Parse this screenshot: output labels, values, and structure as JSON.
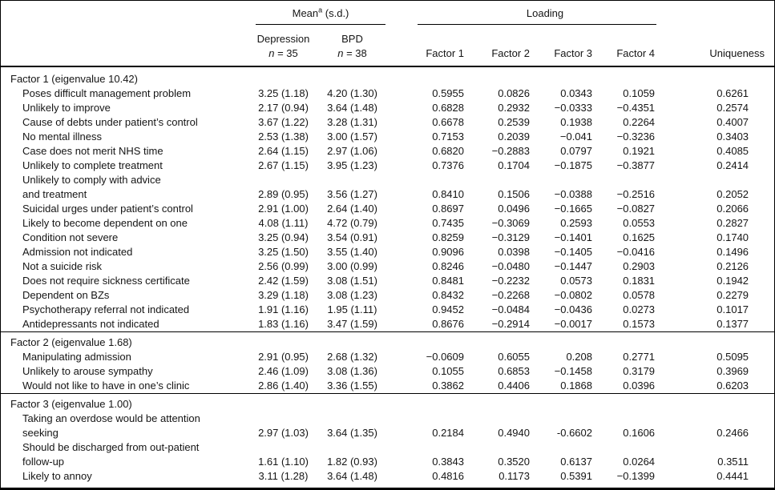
{
  "table": {
    "header": {
      "mean_group": {
        "label": "Mean",
        "superscript": "a",
        "suffix": " (s.d.)"
      },
      "loading_group": "Loading",
      "mean_cols": [
        {
          "name": "Depression",
          "n_italic": "n",
          "n_rest": " = 35"
        },
        {
          "name": "BPD",
          "n_italic": "n",
          "n_rest": " = 38"
        }
      ],
      "factor_cols": [
        "Factor 1",
        "Factor 2",
        "Factor 3",
        "Factor 4"
      ],
      "uniqueness_col": "Uniqueness"
    },
    "sections": [
      {
        "title": "Factor 1 (eigenvalue 10.42)",
        "rows": [
          {
            "label_lines": [
              "Poses difficult management problem"
            ],
            "dep": "3.25 (1.18)",
            "bpd": "4.20 (1.30)",
            "loadings": [
              "0.5955",
              "0.0826",
              "0.0343",
              "0.1059"
            ],
            "uniqueness": "0.6261"
          },
          {
            "label_lines": [
              "Unlikely to improve"
            ],
            "dep": "2.17 (0.94)",
            "bpd": "3.64 (1.48)",
            "loadings": [
              "0.6828",
              "0.2932",
              "−0.0333",
              "−0.4351"
            ],
            "uniqueness": "0.2574"
          },
          {
            "label_lines": [
              "Cause of debts under patient’s control"
            ],
            "dep": "3.67 (1.22)",
            "bpd": "3.28 (1.31)",
            "loadings": [
              "0.6678",
              "0.2539",
              "0.1938",
              "0.2264"
            ],
            "uniqueness": "0.4007"
          },
          {
            "label_lines": [
              "No mental illness"
            ],
            "dep": "2.53 (1.38)",
            "bpd": "3.00 (1.57)",
            "loadings": [
              "0.7153",
              "0.2039",
              "−0.041",
              "−0.3236"
            ],
            "uniqueness": "0.3403"
          },
          {
            "label_lines": [
              "Case does not merit NHS time"
            ],
            "dep": "2.64 (1.15)",
            "bpd": "2.97 (1.06)",
            "loadings": [
              "0.6820",
              "−0.2883",
              "0.0797",
              "0.1921"
            ],
            "uniqueness": "0.4085"
          },
          {
            "label_lines": [
              "Unlikely to complete treatment"
            ],
            "dep": "2.67 (1.15)",
            "bpd": "3.95 (1.23)",
            "loadings": [
              "0.7376",
              "0.1704",
              "−0.1875",
              "−0.3877"
            ],
            "uniqueness": "0.2414"
          },
          {
            "label_lines": [
              "Unlikely to comply with advice",
              "and treatment"
            ],
            "dep": "2.89 (0.95)",
            "bpd": "3.56 (1.27)",
            "loadings": [
              "0.8410",
              "0.1506",
              "−0.0388",
              "−0.2516"
            ],
            "uniqueness": "0.2052"
          },
          {
            "label_lines": [
              "Suicidal urges under patient’s control"
            ],
            "dep": "2.91 (1.00)",
            "bpd": "2.64 (1.40)",
            "loadings": [
              "0.8697",
              "0.0496",
              "−0.1665",
              "−0.0827"
            ],
            "uniqueness": "0.2066"
          },
          {
            "label_lines": [
              "Likely to become dependent on one"
            ],
            "dep": "4.08 (1.11)",
            "bpd": "4.72 (0.79)",
            "loadings": [
              "0.7435",
              "−0.3069",
              "0.2593",
              "0.0553"
            ],
            "uniqueness": "0.2827"
          },
          {
            "label_lines": [
              "Condition not severe"
            ],
            "dep": "3.25 (0.94)",
            "bpd": "3.54 (0.91)",
            "loadings": [
              "0.8259",
              "−0.3129",
              "−0.1401",
              "0.1625"
            ],
            "uniqueness": "0.1740"
          },
          {
            "label_lines": [
              "Admission not indicated"
            ],
            "dep": "3.25 (1.50)",
            "bpd": "3.55 (1.40)",
            "loadings": [
              "0.9096",
              "0.0398",
              "−0.1405",
              "−0.0416"
            ],
            "uniqueness": "0.1496"
          },
          {
            "label_lines": [
              "Not a suicide risk"
            ],
            "dep": "2.56 (0.99)",
            "bpd": "3.00 (0.99)",
            "loadings": [
              "0.8246",
              "−0.0480",
              "−0.1447",
              "0.2903"
            ],
            "uniqueness": "0.2126"
          },
          {
            "label_lines": [
              "Does not require sickness certificate"
            ],
            "dep": "2.42 (1.59)",
            "bpd": "3.08 (1.51)",
            "loadings": [
              "0.8481",
              "−0.2232",
              "0.0573",
              "0.1831"
            ],
            "uniqueness": "0.1942"
          },
          {
            "label_lines": [
              "Dependent on BZs"
            ],
            "dep": "3.29 (1.18)",
            "bpd": "3.08 (1.23)",
            "loadings": [
              "0.8432",
              "−0.2268",
              "−0.0802",
              "0.0578"
            ],
            "uniqueness": "0.2279"
          },
          {
            "label_lines": [
              "Psychotherapy referral not indicated"
            ],
            "dep": "1.91 (1.16)",
            "bpd": "1.95 (1.11)",
            "loadings": [
              "0.9452",
              "−0.0484",
              "−0.0436",
              "0.0273"
            ],
            "uniqueness": "0.1017"
          },
          {
            "label_lines": [
              "Antidepressants not indicated"
            ],
            "dep": "1.83 (1.16)",
            "bpd": "3.47 (1.59)",
            "loadings": [
              "0.8676",
              "−0.2914",
              "−0.0017",
              "0.1573"
            ],
            "uniqueness": "0.1377"
          }
        ]
      },
      {
        "title": "Factor 2 (eigenvalue 1.68)",
        "rows": [
          {
            "label_lines": [
              "Manipulating admission"
            ],
            "dep": "2.91 (0.95)",
            "bpd": "2.68 (1.32)",
            "loadings": [
              "−0.0609",
              "0.6055",
              "0.208",
              "0.2771"
            ],
            "uniqueness": "0.5095"
          },
          {
            "label_lines": [
              "Unlikely to arouse sympathy"
            ],
            "dep": "2.46 (1.09)",
            "bpd": "3.08 (1.36)",
            "loadings": [
              "0.1055",
              "0.6853",
              "−0.1458",
              "0.3179"
            ],
            "uniqueness": "0.3969"
          },
          {
            "label_lines": [
              "Would not like to have in one’s clinic"
            ],
            "dep": "2.86 (1.40)",
            "bpd": "3.36 (1.55)",
            "loadings": [
              "0.3862",
              "0.4406",
              "0.1868",
              "0.0396"
            ],
            "uniqueness": "0.6203"
          }
        ]
      },
      {
        "title": "Factor 3 (eigenvalue 1.00)",
        "rows": [
          {
            "label_lines": [
              "Taking an overdose would be attention",
              "seeking"
            ],
            "dep": "2.97 (1.03)",
            "bpd": "3.64 (1.35)",
            "loadings": [
              "0.2184",
              "0.4940",
              "-0.6602",
              "0.1606"
            ],
            "uniqueness": "0.2466"
          },
          {
            "label_lines": [
              "Should be discharged from out-patient",
              "follow-up"
            ],
            "dep": "1.61 (1.10)",
            "bpd": "1.82 (0.93)",
            "loadings": [
              "0.3843",
              "0.3520",
              "0.6137",
              "0.0264"
            ],
            "uniqueness": "0.3511"
          },
          {
            "label_lines": [
              "Likely to annoy"
            ],
            "dep": "3.11 (1.28)",
            "bpd": "3.64 (1.48)",
            "loadings": [
              "0.4816",
              "0.1173",
              "0.5391",
              "−0.1399"
            ],
            "uniqueness": "0.4441"
          }
        ]
      }
    ]
  }
}
